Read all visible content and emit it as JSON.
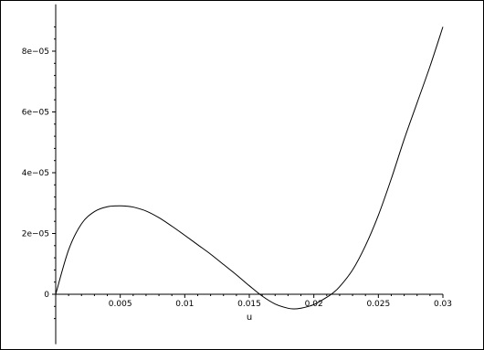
{
  "chart_data": {
    "type": "line",
    "title": "",
    "xlabel": "u",
    "ylabel": "",
    "xlim": [
      0,
      0.03
    ],
    "ylim": [
      -8e-06,
      9e-05
    ],
    "grid": false,
    "x_ticks": [
      {
        "value": 0.005,
        "label": "0.005"
      },
      {
        "value": 0.01,
        "label": "0.01"
      },
      {
        "value": 0.015,
        "label": "0.015"
      },
      {
        "value": 0.02,
        "label": "0.02"
      },
      {
        "value": 0.025,
        "label": "0.025"
      },
      {
        "value": 0.03,
        "label": "0.03"
      }
    ],
    "y_ticks": [
      {
        "value": 0,
        "label": "0"
      },
      {
        "value": 2e-05,
        "label": "2e−05"
      },
      {
        "value": 4e-05,
        "label": "4e−05"
      },
      {
        "value": 6e-05,
        "label": "6e−05"
      },
      {
        "value": 8e-05,
        "label": "8e−05"
      }
    ],
    "series": [
      {
        "x": [
          0,
          0.001,
          0.002,
          0.003,
          0.004,
          0.005,
          0.0055,
          0.006,
          0.007,
          0.008,
          0.009,
          0.01,
          0.011,
          0.012,
          0.013,
          0.014,
          0.015,
          0.016,
          0.017,
          0.018,
          0.0185,
          0.019,
          0.02,
          0.021,
          0.0215,
          0.022,
          0.023,
          0.024,
          0.025,
          0.026,
          0.027,
          0.028,
          0.029,
          0.03
        ],
        "y": [
          0,
          1.46e-05,
          2.32e-05,
          2.72e-05,
          2.88e-05,
          2.91e-05,
          2.9e-05,
          2.87e-05,
          2.74e-05,
          2.52e-05,
          2.24e-05,
          1.94e-05,
          1.63e-05,
          1.32e-05,
          9.8e-06,
          6.4e-06,
          2.8e-06,
          -6e-07,
          -3.2e-06,
          -4.6e-06,
          -4.8e-06,
          -4.6e-06,
          -3.4e-06,
          -1e-06,
          5e-07,
          2.5e-06,
          8e-06,
          1.6e-05,
          2.6e-05,
          3.8e-05,
          5.1e-05,
          6.3e-05,
          7.5e-05,
          8.8e-05
        ],
        "color": "#000000"
      }
    ]
  }
}
